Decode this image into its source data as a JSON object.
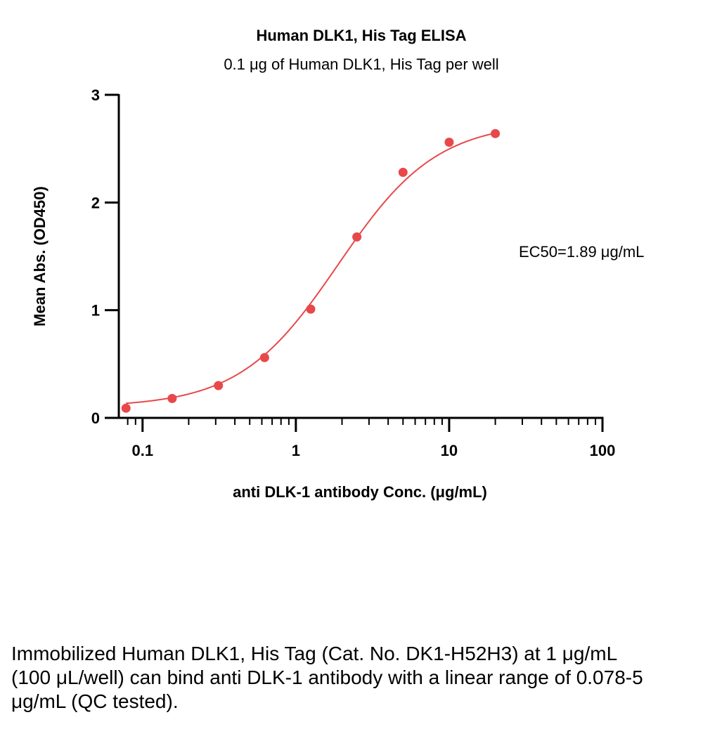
{
  "chart_data": {
    "type": "scatter",
    "title": "Human DLK1, His Tag ELISA",
    "subtitle": "0.1 μg of Human DLK1, His Tag per well",
    "xlabel": "anti DLK-1 antibody Conc. (μg/mL)",
    "ylabel": "Mean Abs. (OD450)",
    "x_scale": "log",
    "xlim": [
      0.07,
      100
    ],
    "ylim": [
      0,
      3
    ],
    "x_ticks": [
      0.1,
      1,
      10,
      100
    ],
    "x_tick_labels": [
      "0.1",
      "1",
      "10",
      "100"
    ],
    "y_ticks": [
      0,
      1,
      2,
      3
    ],
    "y_tick_labels": [
      "0",
      "1",
      "2",
      "3"
    ],
    "grid": false,
    "color": "#e8484a",
    "series": [
      {
        "x": [
          0.078,
          0.156,
          0.3125,
          0.625,
          1.25,
          2.5,
          5,
          10,
          20
        ],
        "y": [
          0.09,
          0.18,
          0.3,
          0.56,
          1.01,
          1.68,
          2.28,
          2.56,
          2.64
        ],
        "fit": "4PL sigmoid",
        "fit_params": {
          "bottom": 0.1,
          "top": 2.75,
          "ec50": 1.89,
          "hill": 1.35
        }
      }
    ],
    "annotations": [
      {
        "text": "EC50=1.89 μg/mL"
      }
    ]
  },
  "caption": "Immobilized Human DLK1, His Tag (Cat. No. DK1-H52H3) at 1 μg/mL (100 μL/well) can bind anti DLK-1 antibody with a linear range of 0.078-5 μg/mL (QC tested)."
}
